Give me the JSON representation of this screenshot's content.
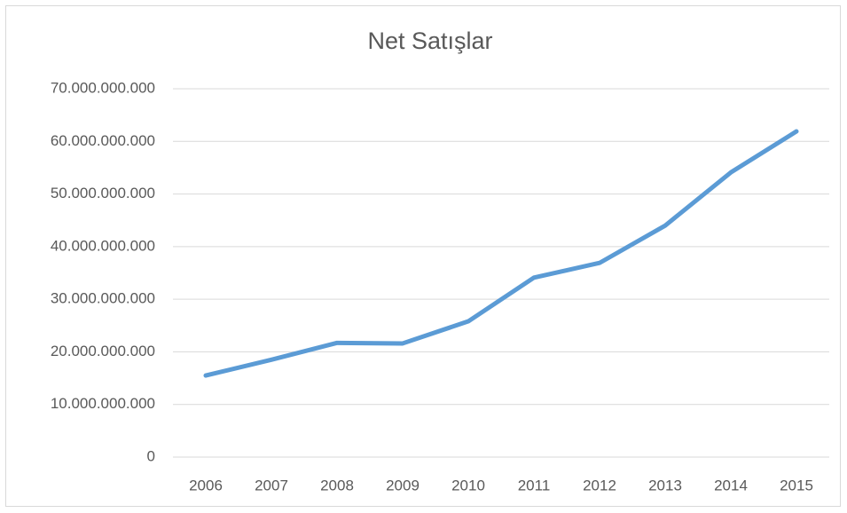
{
  "chart_data": {
    "type": "line",
    "title": "Net Satışlar",
    "categories": [
      "2006",
      "2007",
      "2008",
      "2009",
      "2010",
      "2011",
      "2012",
      "2013",
      "2014",
      "2015"
    ],
    "values": [
      15500000000,
      18500000000,
      21700000000,
      21600000000,
      25800000000,
      34100000000,
      36900000000,
      44000000000,
      54100000000,
      61900000000
    ],
    "color": "#5b9bd5",
    "ylim": [
      0,
      70000000000
    ],
    "yticks": [
      0,
      {
        "value": 10000000000,
        "label": "10.000.000.000"
      },
      {
        "value": 20000000000,
        "label": "20.000.000.000"
      },
      {
        "value": 30000000000,
        "label": "30.000.000.000"
      },
      {
        "value": 40000000000,
        "label": "40.000.000.000"
      },
      {
        "value": 50000000000,
        "label": "50.000.000.000"
      },
      {
        "value": 60000000000,
        "label": "60.000.000.000"
      },
      {
        "value": 70000000000,
        "label": "70.000.000.000"
      }
    ],
    "grid": true
  }
}
